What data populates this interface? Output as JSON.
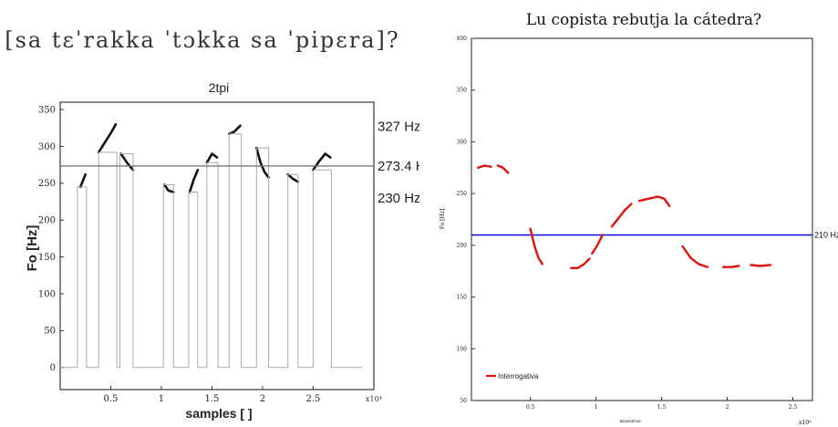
{
  "chart_data": [
    {
      "type": "line",
      "header": "[sa tɛˈrakka ˈtɔkka sa ˈpipɛra]?",
      "title": "2tpi",
      "xlabel": "samples [ ]",
      "ylabel": "Fo [Hz]",
      "x_exponent": "x10⁴",
      "xlim": [
        0,
        3.1
      ],
      "ylim": [
        -30,
        360
      ],
      "yticks": [
        0,
        50,
        100,
        150,
        200,
        250,
        300,
        350
      ],
      "xticks": [
        0.5,
        1,
        1.5,
        2,
        2.5
      ],
      "reference_line": 273.4,
      "annotations": [
        {
          "label": "327 Hz",
          "value": 327
        },
        {
          "label": "273.4 H",
          "value": 273.4
        },
        {
          "label": "230 Hz",
          "value": 230
        }
      ],
      "series": [
        {
          "segments": [
            {
              "x": [
                0.2,
                0.25
              ],
              "y": [
                245,
                262
              ]
            },
            {
              "x": [
                0.38,
                0.44,
                0.5,
                0.55
              ],
              "y": [
                292,
                305,
                318,
                330
              ]
            },
            {
              "x": [
                0.6,
                0.66,
                0.72
              ],
              "y": [
                290,
                278,
                268
              ]
            },
            {
              "x": [
                1.03,
                1.07,
                1.12
              ],
              "y": [
                248,
                240,
                238
              ]
            },
            {
              "x": [
                1.28,
                1.32,
                1.36
              ],
              "y": [
                238,
                255,
                268
              ]
            },
            {
              "x": [
                1.45,
                1.5,
                1.55
              ],
              "y": [
                278,
                290,
                285
              ]
            },
            {
              "x": [
                1.67,
                1.72,
                1.78
              ],
              "y": [
                317,
                320,
                328
              ]
            },
            {
              "x": [
                1.94,
                1.98,
                2.02,
                2.06
              ],
              "y": [
                298,
                278,
                265,
                258
              ]
            },
            {
              "x": [
                2.25,
                2.3,
                2.35
              ],
              "y": [
                262,
                256,
                252
              ]
            },
            {
              "x": [
                2.5,
                2.56,
                2.62,
                2.67
              ],
              "y": [
                268,
                280,
                290,
                285
              ]
            }
          ]
        },
        {
          "segments": [
            {
              "x": [
                0.0,
                0.17,
                0.17,
                0.26,
                0.26,
                0.38,
                0.38,
                0.56,
                0.56,
                0.59,
                0.59,
                0.72,
                0.72,
                1.02,
                1.02,
                1.12,
                1.12,
                1.27,
                1.27,
                1.36,
                1.36,
                1.45,
                1.45,
                1.56,
                1.56,
                1.67,
                1.67,
                1.79,
                1.79,
                1.94,
                1.94,
                2.06,
                2.06,
                2.25,
                2.25,
                2.35,
                2.35,
                2.5,
                2.5,
                2.68,
                2.68,
                2.98
              ],
              "y": [
                0,
                0,
                245,
                245,
                0,
                0,
                292,
                292,
                0,
                0,
                290,
                290,
                0,
                0,
                248,
                248,
                0,
                0,
                238,
                238,
                0,
                0,
                278,
                278,
                0,
                0,
                317,
                317,
                0,
                0,
                298,
                298,
                0,
                0,
                262,
                262,
                0,
                0,
                268,
                268,
                0,
                0
              ]
            }
          ]
        }
      ]
    },
    {
      "type": "line",
      "title": "Lu copista rebutja la cátedra?",
      "xlabel": "muestras",
      "ylabel": "Fo [Hz]",
      "x_exponent": "x10⁴",
      "xlim": [
        0.05,
        2.65
      ],
      "ylim": [
        50,
        400
      ],
      "yticks": [
        50,
        100,
        150,
        200,
        250,
        300,
        350,
        400
      ],
      "xticks": [
        0.5,
        1,
        1.5,
        2,
        2.5
      ],
      "reference_line": 210,
      "reference_label": "210 Hz",
      "legend": "bottom-left",
      "colors": {
        "series": "#e01010",
        "reference": "#1a1adf"
      },
      "series": [
        {
          "name": "Interrogativa",
          "segments": [
            {
              "x": [
                0.1,
                0.15,
                0.2
              ],
              "y": [
                275,
                277,
                276
              ]
            },
            {
              "x": [
                0.25,
                0.29,
                0.33
              ],
              "y": [
                277,
                275,
                270
              ]
            },
            {
              "x": [
                0.5,
                0.53,
                0.56,
                0.59
              ],
              "y": [
                216,
                200,
                188,
                182
              ]
            },
            {
              "x": [
                0.81,
                0.86,
                0.91,
                0.95
              ],
              "y": [
                178,
                178,
                182,
                187
              ]
            },
            {
              "x": [
                0.97,
                1.01,
                1.05
              ],
              "y": [
                192,
                200,
                210
              ]
            },
            {
              "x": [
                1.12,
                1.17,
                1.22,
                1.27
              ],
              "y": [
                218,
                226,
                234,
                240
              ]
            },
            {
              "x": [
                1.33,
                1.4,
                1.47,
                1.52,
                1.56
              ],
              "y": [
                243,
                245,
                247,
                245,
                238
              ]
            },
            {
              "x": [
                1.66,
                1.72,
                1.78,
                1.85
              ],
              "y": [
                199,
                188,
                182,
                179
              ]
            },
            {
              "x": [
                1.97,
                2.03,
                2.09
              ],
              "y": [
                179,
                179,
                180
              ]
            },
            {
              "x": [
                2.18,
                2.25,
                2.33
              ],
              "y": [
                181,
                180,
                181
              ]
            }
          ]
        }
      ]
    }
  ]
}
